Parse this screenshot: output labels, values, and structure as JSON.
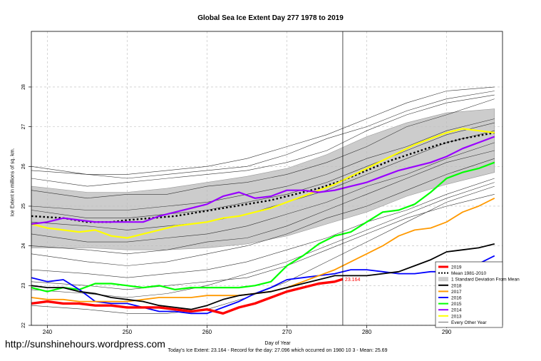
{
  "chart_data": {
    "type": "line",
    "title": "Global Sea Ice Extent Day 277 1978 to 2019",
    "xlabel": "Day of Year",
    "ylabel": "Ice Extent in millions of sq. km.",
    "xlim": [
      238,
      297
    ],
    "ylim": [
      22,
      29.4
    ],
    "xticks": [
      240,
      250,
      260,
      270,
      280,
      290
    ],
    "yticks": [
      22,
      23,
      24,
      25,
      26,
      27,
      28
    ],
    "vline_x": 277,
    "current_value_label": "23.164",
    "legend_position": "bottom-right",
    "footnote": "Today's Ice Extent: 23.164  - Record for the day: 27.096 which occurred on 1980 10 3  - Mean: 25.69",
    "watermark": "http://sunshinehours.wordpress.com",
    "legend": [
      {
        "label": "2019",
        "color": "#ff0000",
        "style": "solid-thick"
      },
      {
        "label": "Mean 1981-2010",
        "color": "#000000",
        "style": "dotted"
      },
      {
        "label": "1 Standard Deviation From Mean",
        "color": "#cccccc",
        "style": "band"
      },
      {
        "label": "2018",
        "color": "#000000",
        "style": "solid"
      },
      {
        "label": "2017",
        "color": "#ff9900",
        "style": "solid"
      },
      {
        "label": "2016",
        "color": "#0000ff",
        "style": "solid"
      },
      {
        "label": "2015",
        "color": "#00ff00",
        "style": "solid"
      },
      {
        "label": "2014",
        "color": "#9900ff",
        "style": "solid"
      },
      {
        "label": "2013",
        "color": "#ffff00",
        "style": "solid"
      },
      {
        "label": "Every Other Year",
        "color": "#333333",
        "style": "thin"
      }
    ],
    "sd_band": {
      "x": [
        238,
        245,
        250,
        255,
        260,
        265,
        270,
        275,
        280,
        285,
        290,
        296
      ],
      "upper": [
        25.5,
        25.35,
        25.35,
        25.45,
        25.6,
        25.75,
        25.95,
        26.3,
        26.75,
        27.1,
        27.35,
        27.45
      ],
      "lower": [
        23.95,
        23.95,
        23.9,
        23.9,
        23.95,
        24.05,
        24.25,
        24.55,
        24.85,
        25.25,
        25.55,
        25.85
      ]
    },
    "mean_1981_2010": {
      "x": [
        238,
        242,
        245,
        248,
        250,
        253,
        256,
        259,
        262,
        265,
        268,
        271,
        274,
        277,
        280,
        283,
        286,
        289,
        292,
        296
      ],
      "y": [
        24.75,
        24.7,
        24.6,
        24.6,
        24.65,
        24.7,
        24.75,
        24.85,
        24.95,
        25.05,
        25.15,
        25.3,
        25.45,
        25.65,
        25.9,
        26.15,
        26.35,
        26.55,
        26.7,
        26.85
      ]
    },
    "every_other_year": [
      {
        "x": [
          238,
          245,
          250,
          255,
          260,
          265,
          270,
          275,
          280,
          285,
          290,
          296
        ],
        "y": [
          25.9,
          25.8,
          25.8,
          25.9,
          26.0,
          26.2,
          26.5,
          26.8,
          27.2,
          27.6,
          27.9,
          28.0
        ]
      },
      {
        "x": [
          238,
          245,
          250,
          255,
          260,
          265,
          270,
          275,
          280,
          285,
          290,
          296
        ],
        "y": [
          25.4,
          25.2,
          25.3,
          25.3,
          25.5,
          25.6,
          25.8,
          26.1,
          26.5,
          27.0,
          27.3,
          27.7
        ]
      },
      {
        "x": [
          238,
          245,
          250,
          255,
          260,
          265,
          270,
          275,
          280,
          285,
          290,
          296
        ],
        "y": [
          25.0,
          24.9,
          24.9,
          25.0,
          25.1,
          25.3,
          25.5,
          25.8,
          26.2,
          26.5,
          26.9,
          27.2
        ]
      },
      {
        "x": [
          238,
          245,
          250,
          255,
          260,
          265,
          270,
          275,
          280,
          285,
          290,
          296
        ],
        "y": [
          24.6,
          24.5,
          24.4,
          24.5,
          24.6,
          24.8,
          25.1,
          25.4,
          25.8,
          26.2,
          26.6,
          26.9
        ]
      },
      {
        "x": [
          238,
          245,
          250,
          255,
          260,
          265,
          270,
          275,
          280,
          285,
          290,
          296
        ],
        "y": [
          24.3,
          24.1,
          24.1,
          24.2,
          24.3,
          24.5,
          24.8,
          25.1,
          25.5,
          25.8,
          26.2,
          26.6
        ]
      },
      {
        "x": [
          238,
          245,
          250,
          255,
          260,
          265,
          270,
          275,
          280,
          285,
          290,
          296
        ],
        "y": [
          23.8,
          23.6,
          23.5,
          23.6,
          23.8,
          24.0,
          24.3,
          24.7,
          25.0,
          25.4,
          25.8,
          26.2
        ]
      },
      {
        "x": [
          238,
          245,
          250,
          255,
          260,
          265,
          270,
          275,
          280,
          285,
          290,
          296
        ],
        "y": [
          23.4,
          23.3,
          23.2,
          23.3,
          23.4,
          23.6,
          23.9,
          24.2,
          24.6,
          24.9,
          25.3,
          25.7
        ]
      },
      {
        "x": [
          238,
          245,
          250,
          255,
          260,
          265,
          270,
          275,
          280,
          285,
          290,
          296
        ],
        "y": [
          22.9,
          22.8,
          22.7,
          22.8,
          23.0,
          23.3,
          23.6,
          24.0,
          24.4,
          24.8,
          25.2,
          25.6
        ]
      },
      {
        "x": [
          238,
          245,
          250,
          255,
          260,
          265,
          270,
          275,
          280,
          285,
          290,
          296
        ],
        "y": [
          22.5,
          22.4,
          22.3,
          22.3,
          22.4,
          22.7,
          23.1,
          23.6,
          24.1,
          24.6,
          25.1,
          25.5
        ]
      },
      {
        "x": [
          238,
          245,
          250,
          255,
          260,
          265,
          270,
          275,
          280,
          285,
          290,
          296
        ],
        "y": [
          26.0,
          25.8,
          25.7,
          25.8,
          25.9,
          26.0,
          26.3,
          26.7,
          27.0,
          27.4,
          27.7,
          27.9
        ]
      },
      {
        "x": [
          238,
          245,
          250,
          255,
          260,
          265,
          270,
          275,
          280,
          285,
          290,
          296
        ],
        "y": [
          25.7,
          25.5,
          25.6,
          25.7,
          25.8,
          25.9,
          26.1,
          26.4,
          26.9,
          27.3,
          27.6,
          27.8
        ]
      },
      {
        "x": [
          238,
          245,
          250,
          255,
          260,
          265,
          270,
          275,
          280,
          285,
          290,
          296
        ],
        "y": [
          24.9,
          24.7,
          24.7,
          24.8,
          24.9,
          25.1,
          25.3,
          25.6,
          26.0,
          26.4,
          26.8,
          27.1
        ]
      },
      {
        "x": [
          238,
          245,
          250,
          255,
          260,
          265,
          270,
          275,
          280,
          285,
          290,
          296
        ],
        "y": [
          24.0,
          23.9,
          23.8,
          23.9,
          24.1,
          24.2,
          24.5,
          24.9,
          25.3,
          25.7,
          26.1,
          26.4
        ]
      },
      {
        "x": [
          238,
          245,
          250,
          255,
          260,
          265,
          270,
          275,
          280,
          285,
          290,
          296
        ],
        "y": [
          23.1,
          23.0,
          22.9,
          23.0,
          23.1,
          23.2,
          23.5,
          23.9,
          24.3,
          24.7,
          25.0,
          25.3
        ]
      }
    ],
    "series": [
      {
        "name": "2013",
        "color": "#ffff00",
        "width": 2.2,
        "x": [
          238,
          240,
          242,
          244,
          246,
          248,
          250,
          252,
          254,
          256,
          258,
          260,
          262,
          264,
          266,
          268,
          270,
          272,
          274,
          276,
          278,
          280,
          282,
          284,
          286,
          288,
          290,
          292,
          294,
          296
        ],
        "y": [
          24.55,
          24.45,
          24.4,
          24.35,
          24.4,
          24.25,
          24.2,
          24.3,
          24.4,
          24.5,
          24.55,
          24.6,
          24.7,
          24.75,
          24.85,
          24.95,
          25.1,
          25.25,
          25.4,
          25.55,
          25.75,
          25.95,
          26.15,
          26.35,
          26.55,
          26.7,
          26.85,
          26.95,
          26.9,
          26.85
        ]
      },
      {
        "name": "2014",
        "color": "#9900ff",
        "width": 2.2,
        "x": [
          238,
          240,
          242,
          244,
          246,
          248,
          250,
          252,
          254,
          256,
          258,
          260,
          262,
          264,
          266,
          268,
          270,
          272,
          274,
          276,
          278,
          280,
          282,
          284,
          286,
          288,
          290,
          292,
          294,
          296
        ],
        "y": [
          24.55,
          24.6,
          24.7,
          24.65,
          24.6,
          24.6,
          24.6,
          24.6,
          24.75,
          24.85,
          24.95,
          25.05,
          25.25,
          25.35,
          25.2,
          25.25,
          25.4,
          25.4,
          25.35,
          25.4,
          25.5,
          25.6,
          25.75,
          25.9,
          26.0,
          26.1,
          26.25,
          26.45,
          26.6,
          26.75
        ]
      },
      {
        "name": "2015",
        "color": "#00ff00",
        "width": 2.2,
        "x": [
          238,
          240,
          242,
          244,
          246,
          248,
          250,
          252,
          254,
          256,
          258,
          260,
          262,
          264,
          266,
          268,
          270,
          272,
          274,
          276,
          278,
          280,
          282,
          284,
          286,
          288,
          290,
          292,
          294,
          296
        ],
        "y": [
          22.95,
          22.85,
          22.95,
          22.9,
          23.05,
          23.05,
          23.0,
          22.95,
          23.0,
          22.9,
          22.95,
          22.95,
          22.95,
          22.95,
          23.0,
          23.1,
          23.5,
          23.75,
          24.05,
          24.25,
          24.35,
          24.6,
          24.85,
          24.9,
          25.05,
          25.35,
          25.7,
          25.85,
          25.95,
          26.1
        ]
      },
      {
        "name": "2016",
        "color": "#0000ff",
        "width": 1.8,
        "x": [
          238,
          240,
          242,
          244,
          246,
          248,
          250,
          252,
          254,
          256,
          258,
          260,
          262,
          264,
          266,
          268,
          270,
          272,
          274,
          276,
          278,
          280,
          282,
          284,
          286,
          288,
          290,
          292,
          294,
          296
        ],
        "y": [
          23.2,
          23.1,
          23.15,
          22.9,
          22.6,
          22.55,
          22.55,
          22.45,
          22.35,
          22.35,
          22.3,
          22.3,
          22.45,
          22.6,
          22.8,
          22.95,
          23.15,
          23.2,
          23.25,
          23.3,
          23.4,
          23.4,
          23.35,
          23.3,
          23.3,
          23.35,
          23.35,
          23.35,
          23.55,
          23.75
        ]
      },
      {
        "name": "2017",
        "color": "#ff9900",
        "width": 1.8,
        "x": [
          238,
          240,
          242,
          244,
          246,
          248,
          250,
          252,
          254,
          256,
          258,
          260,
          262,
          264,
          266,
          268,
          270,
          272,
          274,
          276,
          278,
          280,
          282,
          284,
          286,
          288,
          290,
          292,
          294,
          296
        ],
        "y": [
          22.7,
          22.65,
          22.65,
          22.6,
          22.6,
          22.6,
          22.6,
          22.65,
          22.7,
          22.7,
          22.7,
          22.75,
          22.75,
          22.75,
          22.8,
          22.85,
          22.95,
          23.1,
          23.25,
          23.4,
          23.6,
          23.8,
          24.0,
          24.25,
          24.4,
          24.45,
          24.6,
          24.85,
          25.0,
          25.2
        ]
      },
      {
        "name": "2018",
        "color": "#000000",
        "width": 1.8,
        "x": [
          238,
          240,
          242,
          244,
          246,
          248,
          250,
          252,
          254,
          256,
          258,
          260,
          262,
          264,
          266,
          268,
          270,
          272,
          274,
          276,
          278,
          280,
          282,
          284,
          286,
          288,
          290,
          292,
          294,
          296
        ],
        "y": [
          23.0,
          22.95,
          22.95,
          22.85,
          22.8,
          22.7,
          22.65,
          22.6,
          22.5,
          22.45,
          22.4,
          22.5,
          22.65,
          22.75,
          22.8,
          22.85,
          22.95,
          23.05,
          23.15,
          23.25,
          23.25,
          23.25,
          23.3,
          23.35,
          23.5,
          23.65,
          23.85,
          23.9,
          23.95,
          24.05
        ]
      },
      {
        "name": "2019",
        "color": "#ff0000",
        "width": 3.4,
        "x": [
          238,
          240,
          242,
          244,
          246,
          248,
          250,
          252,
          254,
          256,
          258,
          260,
          262,
          264,
          266,
          268,
          270,
          272,
          274,
          276,
          277
        ],
        "y": [
          22.55,
          22.6,
          22.55,
          22.55,
          22.5,
          22.5,
          22.45,
          22.45,
          22.45,
          22.4,
          22.35,
          22.4,
          22.3,
          22.45,
          22.55,
          22.7,
          22.85,
          22.95,
          23.05,
          23.1,
          23.164
        ]
      }
    ]
  }
}
